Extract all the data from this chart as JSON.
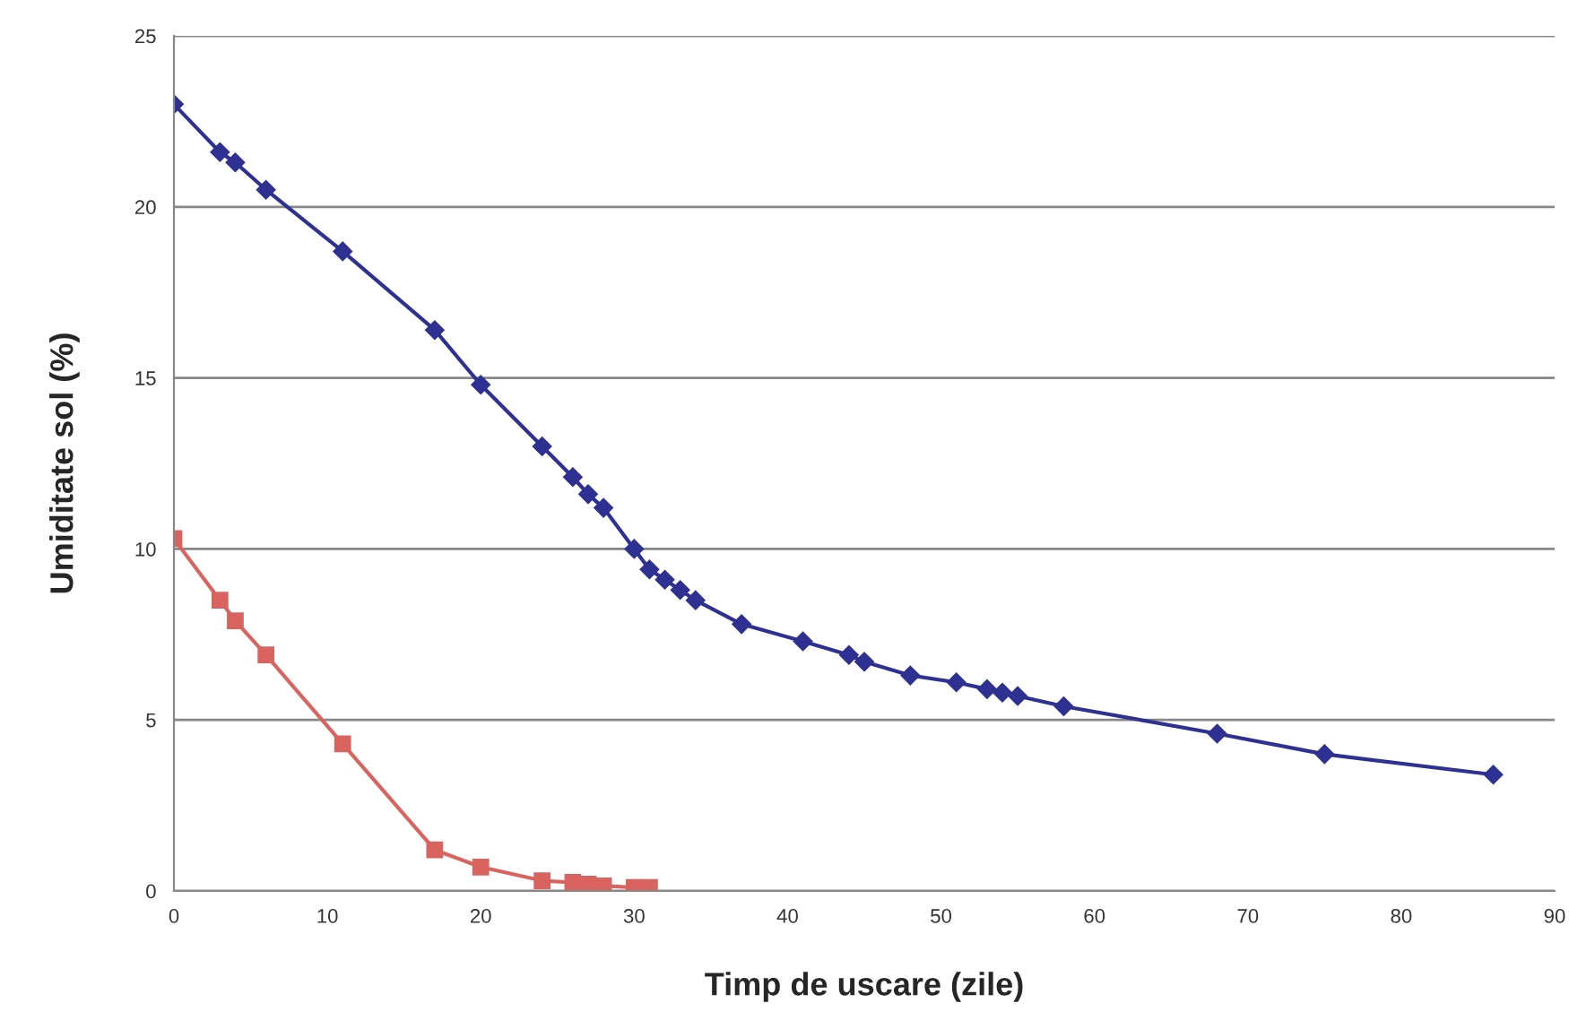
{
  "chart_data": {
    "type": "line",
    "xlabel": "Timp de uscare (zile)",
    "ylabel": "Umiditate sol (%)",
    "xlim": [
      0,
      90
    ],
    "xticks": [
      0,
      10,
      20,
      30,
      40,
      50,
      60,
      70,
      80,
      90
    ],
    "ylim": [
      0,
      25
    ],
    "yticks": [
      0,
      5,
      10,
      15,
      20,
      25
    ],
    "grid": "y",
    "legend": false,
    "series": [
      {
        "color": "#2e3192",
        "marker": "diamond",
        "x": [
          0,
          3,
          4,
          6,
          11,
          17,
          20,
          24,
          26,
          27,
          28,
          30,
          31,
          32,
          33,
          34,
          37,
          41,
          44,
          45,
          48,
          51,
          53,
          54,
          55,
          58,
          68,
          75,
          86
        ],
        "values": [
          23.0,
          21.6,
          21.3,
          20.5,
          18.7,
          16.4,
          14.8,
          13.0,
          12.1,
          11.6,
          11.2,
          10.0,
          9.4,
          9.1,
          8.8,
          8.5,
          7.8,
          7.3,
          6.9,
          6.7,
          6.3,
          6.1,
          5.9,
          5.8,
          5.7,
          5.4,
          4.6,
          4.0,
          3.4
        ]
      },
      {
        "color": "#d9645f",
        "marker": "square",
        "x": [
          0,
          3,
          4,
          6,
          11,
          17,
          20,
          24,
          26,
          27,
          28,
          30,
          31
        ],
        "values": [
          10.3,
          8.5,
          7.9,
          6.9,
          4.3,
          1.2,
          0.7,
          0.3,
          0.25,
          0.2,
          0.15,
          0.1,
          0.1
        ]
      }
    ]
  }
}
